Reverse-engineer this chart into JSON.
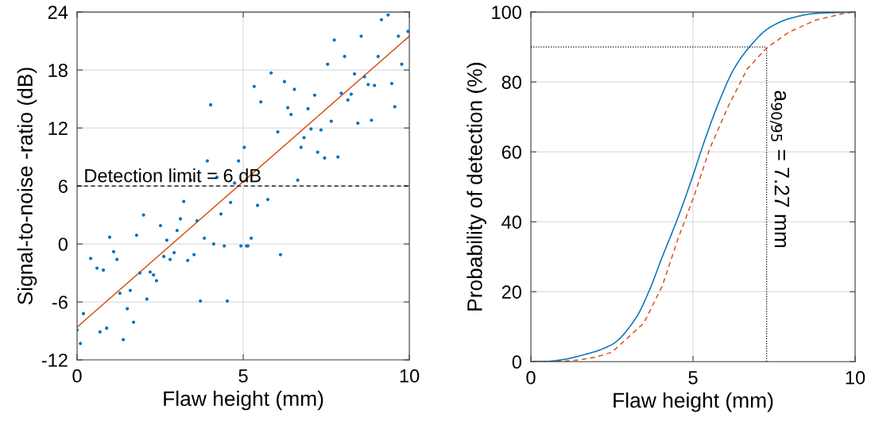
{
  "chart_data": [
    {
      "type": "scatter",
      "xlabel": "Flaw height (mm)",
      "ylabel": "Signal-to-noise -ratio (dB)",
      "xlim": [
        0,
        10
      ],
      "xticks": [
        0,
        5,
        10
      ],
      "ylim": [
        -12,
        24
      ],
      "yticks": [
        -12,
        -6,
        0,
        6,
        12,
        18,
        24
      ],
      "grid": true,
      "legend": false,
      "series": [
        {
          "color": "#0072bd",
          "marker": "circle",
          "x": [
            0.0,
            0.1,
            0.19,
            0.41,
            0.6,
            0.69,
            0.79,
            0.89,
            0.98,
            1.1,
            1.2,
            1.29,
            1.39,
            1.51,
            1.6,
            1.7,
            1.79,
            1.89,
            2.0,
            2.1,
            2.2,
            2.3,
            2.39,
            2.51,
            2.61,
            2.7,
            2.8,
            2.92,
            3.01,
            3.11,
            3.21,
            3.33,
            3.42,
            3.52,
            3.61,
            3.71,
            3.83,
            3.92,
            4.02,
            4.11,
            4.21,
            4.33,
            4.43,
            4.52,
            4.62,
            4.74,
            4.86,
            4.93,
            5.03,
            5.1,
            5.14,
            5.24,
            5.33,
            5.43,
            5.53,
            5.74,
            5.84,
            6.04,
            6.12,
            6.24,
            6.34,
            6.44,
            6.54,
            6.64,
            6.74,
            6.83,
            6.95,
            7.04,
            7.15,
            7.24,
            7.34,
            7.45,
            7.54,
            7.65,
            7.74,
            7.85,
            7.95,
            8.05,
            8.15,
            8.25,
            8.35,
            8.45,
            8.55,
            8.65,
            8.76,
            8.86,
            8.95,
            9.06,
            9.16,
            9.36,
            9.47,
            9.56,
            9.67,
            9.77,
            9.96
          ],
          "values": [
            -8.9,
            -10.3,
            -7.2,
            -1.5,
            -2.5,
            -9.1,
            -2.7,
            -8.7,
            0.7,
            -0.8,
            -1.6,
            -5.1,
            -9.9,
            -6.7,
            -4.8,
            -8.1,
            0.9,
            -3.0,
            3.0,
            -5.7,
            -2.9,
            -3.2,
            -3.8,
            1.9,
            -1.3,
            0.4,
            -1.6,
            -0.9,
            1.4,
            2.6,
            4.4,
            -1.7,
            6.6,
            -1.1,
            2.4,
            -5.9,
            0.6,
            8.6,
            14.4,
            0.0,
            6.9,
            3.1,
            -0.2,
            -5.9,
            4.3,
            6.3,
            8.6,
            -0.2,
            10.0,
            -0.2,
            -0.2,
            0.6,
            16.3,
            4.0,
            14.7,
            4.6,
            17.7,
            11.6,
            -1.1,
            16.8,
            14.1,
            13.4,
            16.0,
            6.6,
            10.0,
            11.0,
            14.0,
            11.9,
            15.4,
            9.5,
            11.8,
            8.9,
            18.6,
            12.7,
            21.1,
            9.0,
            15.6,
            19.4,
            14.9,
            15.5,
            17.6,
            12.5,
            21.5,
            17.3,
            16.5,
            12.8,
            16.4,
            19.4,
            23.2,
            23.7,
            16.6,
            14.2,
            21.5,
            18.6,
            22.0
          ]
        },
        {
          "type": "line",
          "marker": "none",
          "color": "#d95319",
          "x": [
            0,
            10
          ],
          "values": [
            -8.6,
            21.5
          ]
        }
      ],
      "ref_lines": [
        {
          "axis": "y",
          "value": 6,
          "label": "Detection limit = 6 dB",
          "color": "#000000",
          "line_style": "dashed"
        }
      ]
    },
    {
      "type": "line",
      "xlabel": "Flaw height (mm)",
      "ylabel": "Probability of detection (%)",
      "xlim": [
        0,
        10
      ],
      "xticks": [
        0,
        5,
        10
      ],
      "ylim": [
        0,
        100
      ],
      "yticks": [
        0,
        20,
        40,
        60,
        80,
        100
      ],
      "grid": true,
      "legend": false,
      "marker": "none",
      "series": [
        {
          "color": "#0072bd",
          "line_style": "solid",
          "x": [
            0,
            0.5,
            1,
            1.44,
            2.5,
            3.24,
            3.64,
            4.05,
            4.54,
            4.95,
            5.36,
            5.85,
            6.26,
            6.75,
            7.32,
            7.97,
            8.79,
            10
          ],
          "values": [
            0,
            0.1,
            0.6,
            1.5,
            4.9,
            12.5,
            20.1,
            29.9,
            41.3,
            51.9,
            63.3,
            75.4,
            83.7,
            90.1,
            95.3,
            98.1,
            99.6,
            100
          ]
        },
        {
          "color": "#d95319",
          "line_style": "dashed",
          "x": [
            0,
            1,
            1.5,
            2,
            2.5,
            3.48,
            4.05,
            4.54,
            5.03,
            5.52,
            6.09,
            6.67,
            7.28,
            7.97,
            8.79,
            9.6,
            10
          ],
          "values": [
            0,
            0.1,
            0.5,
            1.3,
            2.7,
            11.0,
            21.6,
            35.2,
            47.3,
            61.0,
            73.1,
            83.7,
            89.8,
            94.3,
            97.7,
            99.5,
            100
          ]
        }
      ],
      "ref_lines": [
        {
          "axis": "y",
          "value": 90,
          "color": "#000000",
          "line_style": "dotted"
        },
        {
          "axis": "x",
          "value": 7.27,
          "label": "a$_{90/95}$ = 7.27 mm",
          "color": "#000000",
          "line_style": "dotted"
        }
      ]
    }
  ]
}
